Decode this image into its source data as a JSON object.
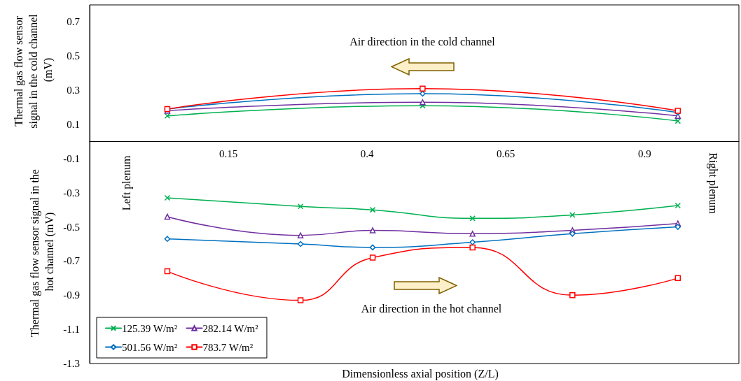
{
  "chart_data": {
    "type": "line",
    "xlabel": "Dimensionless axial position (Z/L)",
    "ylabel": "Thermal gas flow sensor signal in the cold channel (mV)",
    "annotations": [
      "Air direction in the cold channel",
      "Air direction in the hot channel",
      "Left plenum",
      "Right plenum",
      "Thermal gas flow sensor signal in the hot channel (mV)"
    ],
    "xlim": [
      -0.1,
      1.07
    ],
    "xticks": [
      0.15,
      0.4,
      0.65,
      0.9
    ],
    "ylim": [
      -1.3,
      0.8
    ],
    "yticks": [
      -1.3,
      -1.1,
      -0.9,
      -0.7,
      -0.5,
      -0.3,
      -0.1,
      0.1,
      0.3,
      0.5,
      0.7
    ],
    "legend": "bottom left",
    "line_style": "solid",
    "series": [
      {
        "name": "125.39 W/m²",
        "color": "#00b050",
        "marker": "cross",
        "x": [
          0.04,
          0.5,
          0.96
        ],
        "values": [
          0.15,
          0.21,
          0.12
        ]
      },
      {
        "name": "282.14 W/m²",
        "color": "#7030a0",
        "marker": "triangle",
        "x": [
          0.04,
          0.5,
          0.96
        ],
        "values": [
          0.18,
          0.23,
          0.15
        ]
      },
      {
        "name": "501.56 W/m²",
        "color": "#0070c0",
        "marker": "diamond",
        "x": [
          0.04,
          0.5,
          0.96
        ],
        "values": [
          0.19,
          0.28,
          0.17
        ]
      },
      {
        "name": "783.7 W/m²",
        "color": "#ff0000",
        "marker": "square",
        "x": [
          0.04,
          0.5,
          0.96
        ],
        "values": [
          0.19,
          0.31,
          0.18
        ]
      },
      {
        "color": "#00b050",
        "marker": "cross",
        "x": [
          0.04,
          0.28,
          0.41,
          0.59,
          0.77,
          0.96
        ],
        "values": [
          -0.33,
          -0.38,
          -0.4,
          -0.45,
          -0.43,
          -0.375
        ]
      },
      {
        "color": "#7030a0",
        "marker": "triangle",
        "x": [
          0.04,
          0.28,
          0.41,
          0.59,
          0.77,
          0.96
        ],
        "values": [
          -0.44,
          -0.55,
          -0.52,
          -0.54,
          -0.52,
          -0.48
        ]
      },
      {
        "color": "#0070c0",
        "marker": "diamond",
        "x": [
          0.04,
          0.28,
          0.41,
          0.59,
          0.77,
          0.96
        ],
        "values": [
          -0.57,
          -0.6,
          -0.62,
          -0.59,
          -0.54,
          -0.5
        ]
      },
      {
        "color": "#ff0000",
        "marker": "square",
        "x": [
          0.04,
          0.28,
          0.41,
          0.59,
          0.77,
          0.96
        ],
        "values": [
          -0.76,
          -0.93,
          -0.68,
          -0.62,
          -0.9,
          -0.8
        ]
      }
    ]
  }
}
